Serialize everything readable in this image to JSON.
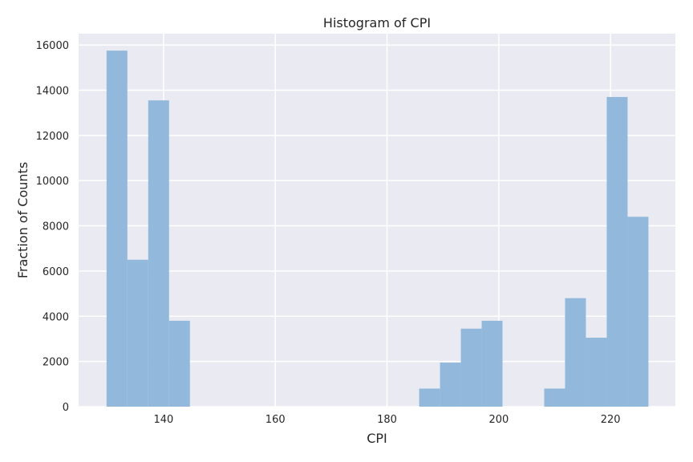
{
  "chart_data": {
    "type": "bar",
    "title": "Histogram of CPI",
    "xlabel": "CPI",
    "ylabel": "Fraction of Counts",
    "xlim": [
      124.8,
      231.6
    ],
    "ylim": [
      0,
      16500
    ],
    "xticks": [
      140,
      160,
      180,
      200,
      220
    ],
    "yticks": [
      0,
      2000,
      4000,
      6000,
      8000,
      10000,
      12000,
      14000,
      16000
    ],
    "grid": true,
    "bin_edges": [
      129.8,
      133.53,
      137.26,
      140.99,
      144.72,
      148.45,
      152.18,
      155.91,
      159.64,
      163.37,
      167.1,
      170.83,
      174.56,
      178.29,
      182.02,
      185.75,
      189.48,
      193.21,
      196.94,
      200.67,
      204.4,
      208.13,
      211.86,
      215.59,
      219.32,
      223.05,
      226.78
    ],
    "values": [
      15750,
      6500,
      13550,
      3800,
      0,
      0,
      0,
      0,
      0,
      0,
      0,
      0,
      0,
      0,
      0,
      800,
      1950,
      3450,
      3800,
      0,
      0,
      800,
      4800,
      3050,
      13700,
      8400
    ],
    "colors": {
      "bar": "#92b9dc",
      "background": "#eaeaf2",
      "grid": "#ffffff"
    }
  }
}
